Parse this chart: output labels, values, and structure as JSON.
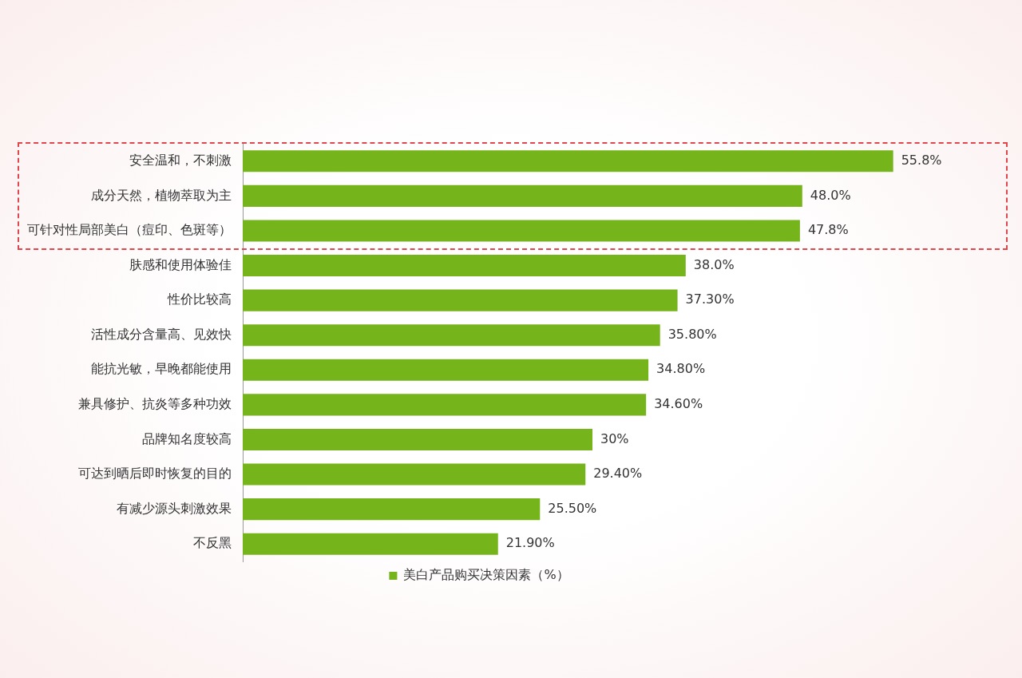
{
  "chart_data": {
    "type": "bar",
    "orientation": "horizontal",
    "categories": [
      "安全温和，不刺激",
      "成分天然，植物萃取为主",
      "可针对性局部美白（痘印、色斑等）",
      "肤感和使用体验佳",
      "性价比较高",
      "活性成分含量高、见效快",
      "能抗光敏，早晚都能使用",
      "兼具修护、抗炎等多种功效",
      "品牌知名度较高",
      "可达到晒后即时恢复的目的",
      "有减少源头刺激效果",
      "不反黑"
    ],
    "series": [
      {
        "name": "美白产品购买决策因素（%）",
        "color": "#76b41b",
        "values": [
          55.8,
          48.0,
          47.8,
          38.0,
          37.3,
          35.8,
          34.8,
          34.6,
          30,
          29.4,
          25.5,
          21.9
        ],
        "value_labels": [
          "55.8%",
          "48.0%",
          "47.8%",
          "38.0%",
          "37.30%",
          "35.80%",
          "34.80%",
          "34.60%",
          "30%",
          "29.40%",
          "25.50%",
          "21.90%"
        ]
      }
    ],
    "tick_labels": "y",
    "legend": "bottom"
  }
}
